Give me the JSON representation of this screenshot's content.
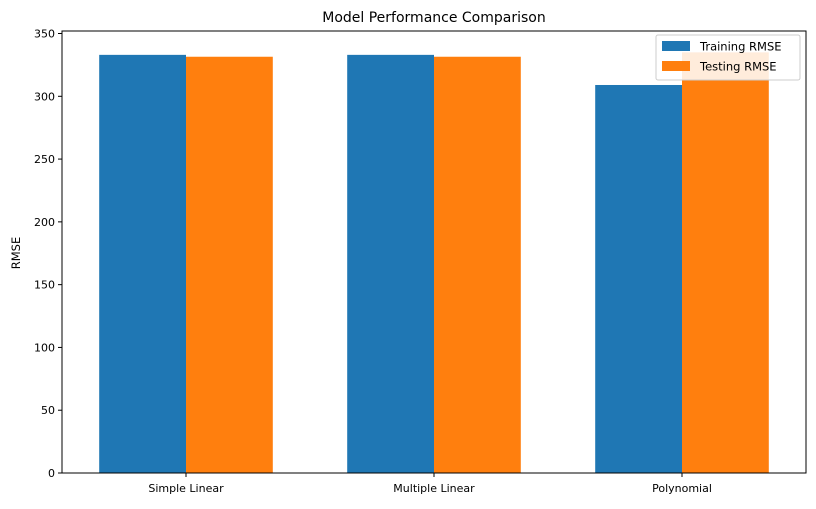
{
  "chart_data": {
    "type": "bar",
    "title": "Model Performance Comparison",
    "xlabel": "",
    "ylabel": "RMSE",
    "categories": [
      "Simple Linear",
      "Multiple Linear",
      "Polynomial"
    ],
    "series": [
      {
        "name": "Training RMSE",
        "color": "#1f77b4",
        "values": [
          333,
          333,
          309
        ]
      },
      {
        "name": "Testing RMSE",
        "color": "#ff7f0e",
        "values": [
          331.5,
          331.5,
          335
        ]
      }
    ],
    "ylim": [
      0,
      352
    ],
    "yticks": [
      0,
      50,
      100,
      150,
      200,
      250,
      300,
      350
    ],
    "grid": false,
    "legend_position": "top-right"
  }
}
